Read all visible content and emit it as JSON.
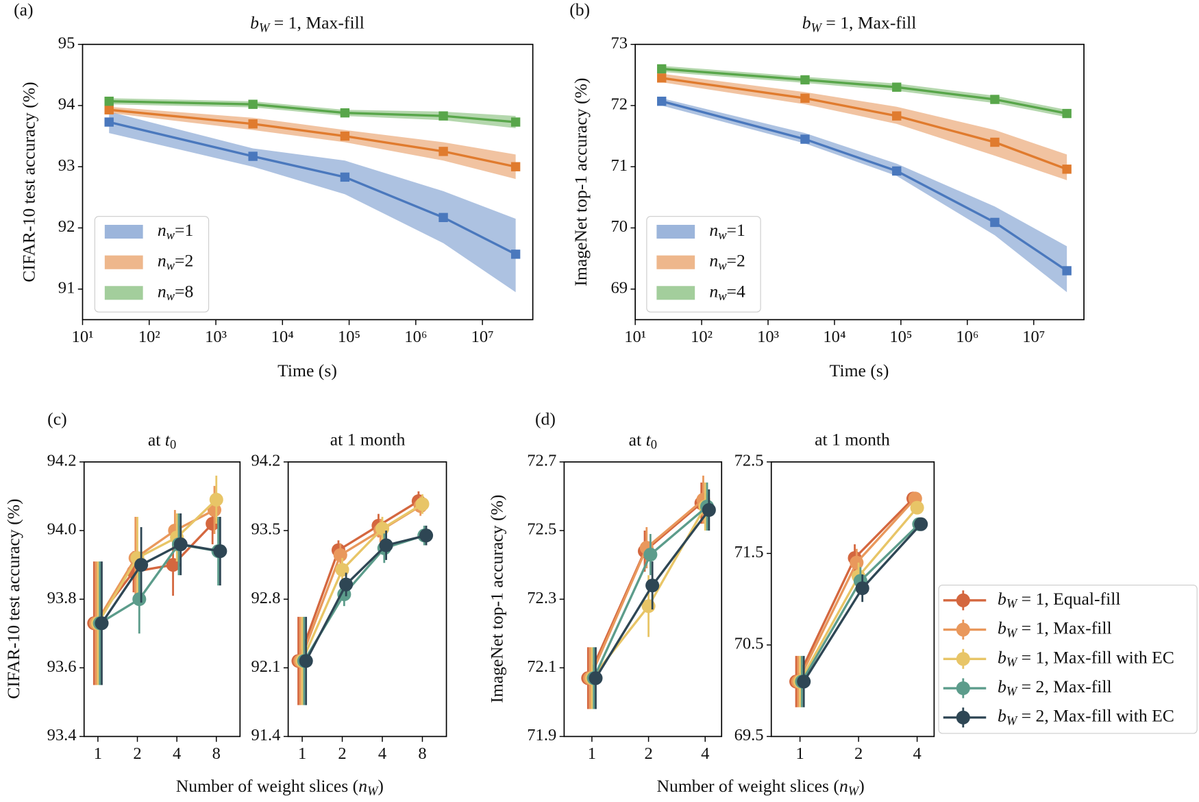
{
  "chart_data": [
    {
      "type": "line",
      "panel": "(a)",
      "title": "bW = 1, Max-fill",
      "xlabel": "Time (s)",
      "ylabel": "CIFAR-10 test accuracy (%)",
      "xscale": "log",
      "x": [
        25,
        3600,
        86400,
        2592000,
        31536000
      ],
      "xlim": [
        10,
        57000000
      ],
      "xticks": [
        {
          "value": 10,
          "label": "10¹"
        },
        {
          "value": 100,
          "label": "10²"
        },
        {
          "value": 1000,
          "label": "10³"
        },
        {
          "value": 10000,
          "label": "10⁴"
        },
        {
          "value": 100000,
          "label": "10⁵"
        },
        {
          "value": 1000000,
          "label": "10⁶"
        },
        {
          "value": 10000000,
          "label": "10⁷"
        }
      ],
      "ylim": [
        90.5,
        95
      ],
      "yticks": [
        91,
        92,
        93,
        94,
        95
      ],
      "legend": "lower left",
      "series": [
        {
          "name": "nw=1",
          "color": "#4a78bd",
          "values": [
            93.73,
            93.17,
            92.83,
            92.17,
            91.57
          ],
          "lower": [
            93.55,
            93.0,
            92.55,
            91.75,
            90.95
          ],
          "upper": [
            93.9,
            93.3,
            93.1,
            92.6,
            92.15
          ]
        },
        {
          "name": "nw=2",
          "color": "#e07b2e",
          "values": [
            93.93,
            93.7,
            93.5,
            93.25,
            93.0
          ],
          "lower": [
            93.88,
            93.6,
            93.4,
            93.1,
            92.8
          ],
          "upper": [
            93.98,
            93.8,
            93.6,
            93.4,
            93.2
          ]
        },
        {
          "name": "nw=8",
          "color": "#58a64a",
          "values": [
            94.07,
            94.02,
            93.88,
            93.83,
            93.73
          ],
          "lower": [
            94.02,
            93.97,
            93.83,
            93.76,
            93.63
          ],
          "upper": [
            94.12,
            94.07,
            93.93,
            93.9,
            93.83
          ]
        }
      ]
    },
    {
      "type": "line",
      "panel": "(b)",
      "title": "bW = 1, Max-fill",
      "xlabel": "Time (s)",
      "ylabel": "ImageNet top-1 accuracy (%)",
      "xscale": "log",
      "x": [
        25,
        3600,
        86400,
        2592000,
        31536000
      ],
      "xlim": [
        10,
        57000000
      ],
      "xticks": [
        {
          "value": 10,
          "label": "10¹"
        },
        {
          "value": 100,
          "label": "10²"
        },
        {
          "value": 1000,
          "label": "10³"
        },
        {
          "value": 10000,
          "label": "10⁴"
        },
        {
          "value": 100000,
          "label": "10⁵"
        },
        {
          "value": 1000000,
          "label": "10⁶"
        },
        {
          "value": 10000000,
          "label": "10⁷"
        }
      ],
      "ylim": [
        68.5,
        73
      ],
      "yticks": [
        69,
        70,
        71,
        72,
        73
      ],
      "legend": "lower left",
      "series": [
        {
          "name": "nw=1",
          "color": "#4a78bd",
          "values": [
            72.07,
            71.45,
            70.93,
            70.09,
            69.3
          ],
          "lower": [
            72.0,
            71.38,
            70.85,
            69.88,
            68.95
          ],
          "upper": [
            72.12,
            71.55,
            71.05,
            70.35,
            69.7
          ]
        },
        {
          "name": "nw=2",
          "color": "#e07b2e",
          "values": [
            72.45,
            72.12,
            71.83,
            71.4,
            70.96
          ],
          "lower": [
            72.38,
            72.02,
            71.7,
            71.18,
            70.78
          ],
          "upper": [
            72.52,
            72.22,
            71.98,
            71.6,
            71.2
          ]
        },
        {
          "name": "nw=4",
          "color": "#58a64a",
          "values": [
            72.6,
            72.42,
            72.3,
            72.1,
            71.87
          ],
          "lower": [
            72.55,
            72.37,
            72.24,
            72.04,
            71.81
          ],
          "upper": [
            72.65,
            72.47,
            72.36,
            72.16,
            71.93
          ]
        }
      ]
    },
    {
      "type": "errorbar",
      "panel": "(c)",
      "title": "at t0",
      "xlabel": "Number of weight slices (nW)",
      "ylabel": "CIFAR-10 test accuracy (%)",
      "categories": [
        "1",
        "2",
        "4",
        "8"
      ],
      "ylim": [
        93.4,
        94.2
      ],
      "yticks": [
        93.4,
        93.6,
        93.8,
        {
          "value": 94,
          "label": "94.0"
        },
        94.2
      ],
      "series": [
        {
          "name": "bW = 1, Equal-fill",
          "color": "#d4673f",
          "values": [
            93.73,
            93.88,
            93.9,
            94.02
          ],
          "errors": [
            0.18,
            0.06,
            0.09,
            0.06
          ]
        },
        {
          "name": "bW = 1, Max-fill",
          "color": "#e9985c",
          "values": [
            93.73,
            93.92,
            94.0,
            94.06
          ],
          "errors": [
            0.18,
            0.12,
            0.06,
            0.07
          ]
        },
        {
          "name": "bW = 1, Max-fill with EC",
          "color": "#e8c567",
          "values": [
            93.73,
            93.92,
            93.98,
            94.09
          ],
          "errors": [
            0.18,
            0.12,
            0.07,
            0.07
          ]
        },
        {
          "name": "bW = 2, Max-fill",
          "color": "#5c9c8b",
          "values": [
            93.73,
            93.8,
            93.96,
            93.94
          ],
          "errors": [
            0.18,
            0.1,
            0.09,
            0.1
          ]
        },
        {
          "name": "bW = 2, Max-fill with EC",
          "color": "#2e4654",
          "values": [
            93.73,
            93.9,
            93.96,
            93.94
          ],
          "errors": [
            0.18,
            0.11,
            0.09,
            0.1
          ]
        }
      ]
    },
    {
      "type": "errorbar",
      "title": "at 1 month",
      "categories": [
        "1",
        "2",
        "4",
        "8"
      ],
      "ylim": [
        91.4,
        94.2
      ],
      "yticks": [
        91.4,
        92.1,
        92.8,
        93.5,
        94.2
      ],
      "series": [
        {
          "name": "bW = 1, Equal-fill",
          "color": "#d4673f",
          "values": [
            92.17,
            93.3,
            93.55,
            93.8
          ],
          "errors": [
            0.45,
            0.1,
            0.12,
            0.1
          ]
        },
        {
          "name": "bW = 1, Max-fill",
          "color": "#e9985c",
          "values": [
            92.17,
            93.25,
            93.5,
            93.75
          ],
          "errors": [
            0.45,
            0.12,
            0.12,
            0.1
          ]
        },
        {
          "name": "bW = 1, Max-fill with EC",
          "color": "#e8c567",
          "values": [
            92.17,
            93.1,
            93.52,
            93.77
          ],
          "errors": [
            0.45,
            0.12,
            0.12,
            0.1
          ]
        },
        {
          "name": "bW = 2, Max-fill",
          "color": "#5c9c8b",
          "values": [
            92.17,
            92.85,
            93.32,
            93.45
          ],
          "errors": [
            0.45,
            0.12,
            0.15,
            0.1
          ]
        },
        {
          "name": "bW = 2, Max-fill with EC",
          "color": "#2e4654",
          "values": [
            92.17,
            92.95,
            93.35,
            93.45
          ],
          "errors": [
            0.45,
            0.12,
            0.15,
            0.1
          ]
        }
      ]
    },
    {
      "type": "errorbar",
      "panel": "(d)",
      "title": "at t0",
      "xlabel": "Number of weight slices (nW)",
      "ylabel": "ImageNet top-1 accuracy (%)",
      "categories": [
        "1",
        "2",
        "4"
      ],
      "ylim": [
        71.9,
        72.7
      ],
      "yticks": [
        71.9,
        72.1,
        72.3,
        72.5,
        72.7
      ],
      "series": [
        {
          "name": "bW = 1, Equal-fill",
          "color": "#d4673f",
          "values": [
            72.07,
            72.44,
            72.58
          ],
          "errors": [
            0.09,
            0.06,
            0.06
          ]
        },
        {
          "name": "bW = 1, Max-fill",
          "color": "#e9985c",
          "values": [
            72.07,
            72.45,
            72.59
          ],
          "errors": [
            0.09,
            0.06,
            0.07
          ]
        },
        {
          "name": "bW = 1, Max-fill with EC",
          "color": "#e8c567",
          "values": [
            72.07,
            72.28,
            72.57
          ],
          "errors": [
            0.09,
            0.09,
            0.07
          ]
        },
        {
          "name": "bW = 2, Max-fill",
          "color": "#5c9c8b",
          "values": [
            72.07,
            72.43,
            72.57
          ],
          "errors": [
            0.09,
            0.06,
            0.07
          ]
        },
        {
          "name": "bW = 2, Max-fill with EC",
          "color": "#2e4654",
          "values": [
            72.07,
            72.34,
            72.56
          ],
          "errors": [
            0.09,
            0.07,
            0.06
          ]
        }
      ]
    },
    {
      "type": "errorbar",
      "title": "at 1 month",
      "legend": "outside right",
      "categories": [
        "1",
        "2",
        "4"
      ],
      "ylim": [
        69.5,
        72.5
      ],
      "yticks": [
        69.5,
        70.5,
        71.5,
        72.5
      ],
      "series": [
        {
          "name": "bW = 1, Equal-fill",
          "color": "#d4673f",
          "values": [
            70.1,
            71.45,
            72.1
          ],
          "errors": [
            0.28,
            0.15,
            0.05
          ]
        },
        {
          "name": "bW = 1, Max-fill",
          "color": "#e9985c",
          "values": [
            70.1,
            71.4,
            72.1
          ],
          "errors": [
            0.28,
            0.15,
            0.05
          ]
        },
        {
          "name": "bW = 1, Max-fill with EC",
          "color": "#e8c567",
          "values": [
            70.1,
            71.25,
            72.0
          ],
          "errors": [
            0.28,
            0.15,
            0.05
          ]
        },
        {
          "name": "bW = 2, Max-fill",
          "color": "#5c9c8b",
          "values": [
            70.1,
            71.2,
            71.82
          ],
          "errors": [
            0.28,
            0.15,
            0.05
          ]
        },
        {
          "name": "bW = 2, Max-fill with EC",
          "color": "#2e4654",
          "values": [
            70.1,
            71.12,
            71.82
          ],
          "errors": [
            0.28,
            0.15,
            0.05
          ]
        }
      ]
    }
  ]
}
